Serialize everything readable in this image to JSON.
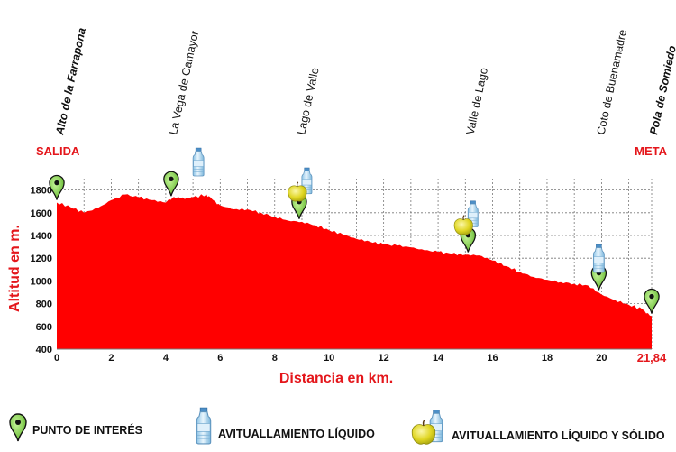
{
  "chart_data": {
    "type": "area",
    "xlabel": "Distancia en km.",
    "ylabel": "Altitud en m.",
    "xlim": [
      0,
      21.84
    ],
    "ylim": [
      400,
      1900
    ],
    "x_ticks": [
      "0",
      "2",
      "4",
      "6",
      "8",
      "10",
      "12",
      "14",
      "16",
      "18",
      "20"
    ],
    "x_end_label": "21,84",
    "y_ticks": [
      "400",
      "600",
      "800",
      "1000",
      "1200",
      "1400",
      "1600",
      "1800"
    ],
    "grid": true,
    "fill_color": "#ff0000",
    "x": [
      0,
      0.5,
      1,
      1.5,
      2,
      2.5,
      3,
      3.5,
      4,
      4.3,
      4.7,
      5,
      5.5,
      5.7,
      6,
      6.5,
      7,
      7.5,
      8,
      8.5,
      9,
      9.5,
      10,
      10.5,
      11,
      11.5,
      12,
      12.5,
      13,
      13.5,
      14,
      14.5,
      15,
      15.5,
      16,
      16.5,
      17,
      17.5,
      18,
      18.5,
      19,
      19.5,
      20,
      20.5,
      21,
      21.5,
      21.84
    ],
    "y": [
      1690,
      1650,
      1600,
      1640,
      1710,
      1760,
      1735,
      1710,
      1690,
      1740,
      1720,
      1735,
      1760,
      1720,
      1665,
      1630,
      1630,
      1600,
      1565,
      1530,
      1520,
      1490,
      1445,
      1410,
      1370,
      1345,
      1320,
      1310,
      1295,
      1270,
      1255,
      1240,
      1230,
      1225,
      1180,
      1130,
      1080,
      1035,
      1010,
      990,
      975,
      960,
      880,
      830,
      790,
      750,
      690
    ],
    "markers": {
      "series": [
        {
          "name": "PUNTO DE INTERÉS",
          "x": [
            0,
            4.2,
            8.9,
            15.1,
            19.9,
            21.84
          ]
        },
        {
          "name": "AVITUALLAMIENTO LÍQUIDO",
          "x": [
            5.2,
            19.9
          ]
        },
        {
          "name": "AVITUALLAMIENTO LÍQUIDO Y SÓLIDO",
          "x": [
            8.8,
            14.9
          ]
        }
      ]
    },
    "waypoints": [
      {
        "name": "Alto de la Farrapona",
        "x": 0,
        "bold": true
      },
      {
        "name": "La Vega de Camayor",
        "x": 4.2,
        "bold": false
      },
      {
        "name": "Lago de Valle",
        "x": 8.9,
        "bold": false
      },
      {
        "name": "Valle de Lago",
        "x": 15.1,
        "bold": false
      },
      {
        "name": "Coto de Buenamadre",
        "x": 19.9,
        "bold": false
      },
      {
        "name": "Pola de Somiedo",
        "x": 21.84,
        "bold": true
      }
    ],
    "start_label": "SALIDA",
    "end_label": "META"
  },
  "legend": {
    "poi": "PUNTO DE INTERÉS",
    "liquid": "AVITUALLAMIENTO LÍQUIDO",
    "solid": "AVITUALLAMIENTO LÍQUIDO Y SÓLIDO"
  },
  "colors": {
    "accent_red": "#e4161b",
    "pin_green": "#7bd13a",
    "apple": "#e8e02a",
    "bottle": "#b9dcf2"
  },
  "icons": [
    "map-pin-icon",
    "water-bottle-icon",
    "apple-icon"
  ]
}
